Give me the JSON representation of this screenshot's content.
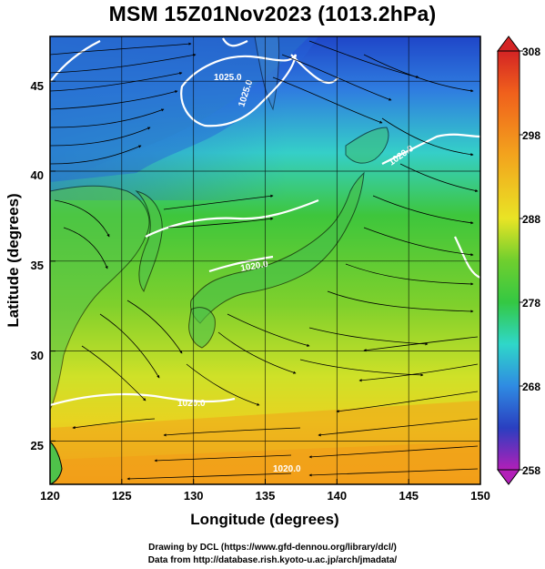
{
  "title": "MSM 15Z01Nov2023 (1013.2hPa)",
  "xlabel": "Longitude (degrees)",
  "ylabel": "Latitude  (degrees)",
  "xticks": [
    "120",
    "125",
    "130",
    "135",
    "140",
    "145",
    "150"
  ],
  "yticks": [
    "25",
    "30",
    "35",
    "40",
    "45"
  ],
  "colorbar": {
    "labels": [
      "308",
      "298",
      "288",
      "278",
      "268",
      "258"
    ],
    "min": 258,
    "max": 308
  },
  "extent": {
    "lon": [
      120,
      150
    ],
    "lat": [
      22.5,
      47.5
    ]
  },
  "contours": [
    {
      "label": "1025.0"
    },
    {
      "label": "1025.0"
    },
    {
      "label": "1020.0"
    },
    {
      "label": "1020.0"
    },
    {
      "label": "1020.0"
    },
    {
      "label": "1020.0"
    }
  ],
  "credits": {
    "line1": "Drawing by DCL (https://www.gfd-dennou.org/library/dcl/)",
    "line2": "Data from http://database.rish.kyoto-u.ac.jp/arch/jmadata/"
  },
  "colors": {
    "cold": "#1f5ad6",
    "cool": "#2fd3d0",
    "mild": "#3fc43a",
    "warm": "#e8e31c",
    "hot": "#f2a619"
  }
}
